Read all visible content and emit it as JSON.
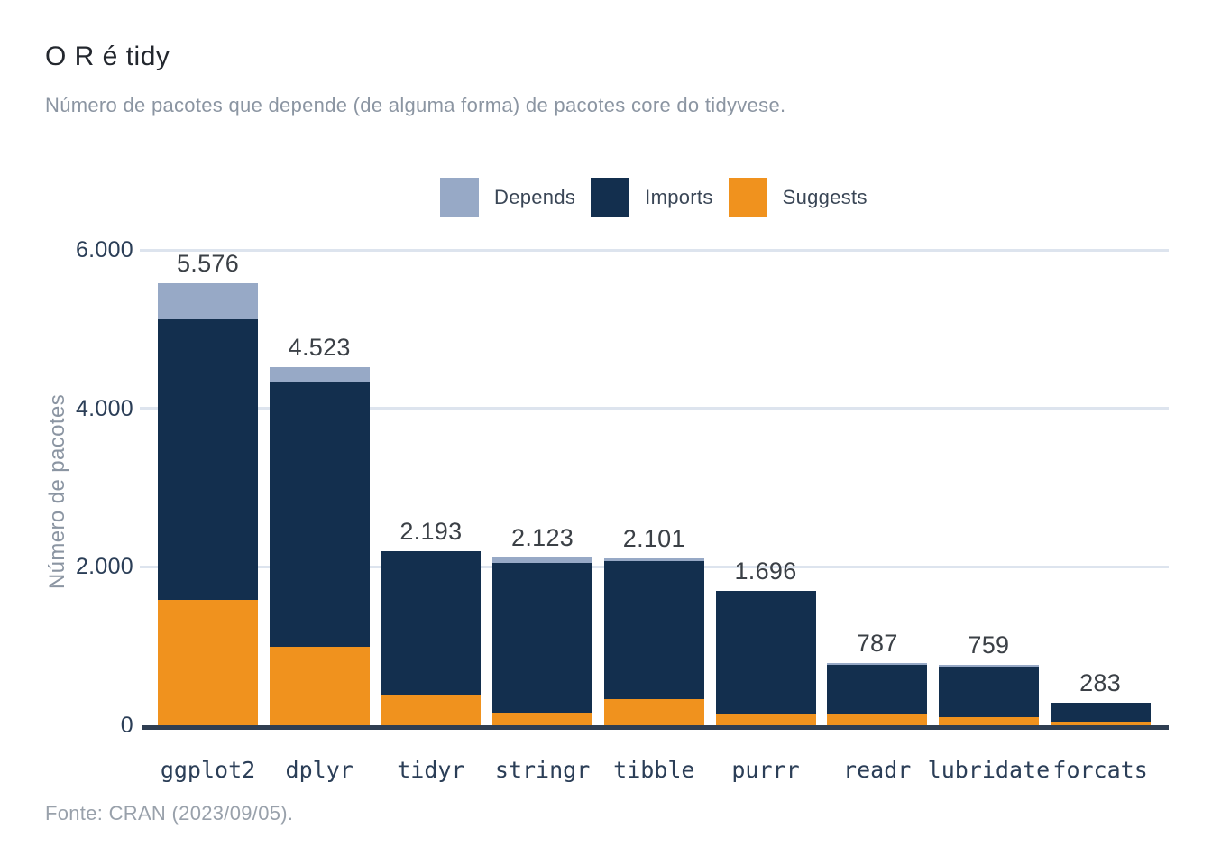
{
  "title": "O R é tidy",
  "subtitle": "Número de pacotes que depende (de alguma forma) de pacotes core do tidyvese.",
  "caption": "Fonte: CRAN (2023/09/05).",
  "legend": {
    "items": [
      {
        "label": "Depends",
        "color_key": "depends"
      },
      {
        "label": "Imports",
        "color_key": "imports"
      },
      {
        "label": "Suggests",
        "color_key": "suggests"
      }
    ]
  },
  "colors": {
    "depends": "#97a9c6",
    "imports": "#132f4e",
    "suggests": "#f0921e",
    "grid": "#dde4ee",
    "axis_line": "#2f3e52",
    "title_text": "#23272e",
    "subtitle_text": "#8b95a2",
    "caption_text": "#99a1ab",
    "tick_label": "#2b3e57",
    "value_label": "#3b4046",
    "legend_label": "#3a4656",
    "axis_title_text": "#8b95a2",
    "background": "#ffffff"
  },
  "chart_data": {
    "type": "bar",
    "stacked": true,
    "title": "O R é tidy",
    "subtitle": "Número de pacotes que depende (de alguma forma) de pacotes core do tidyvese.",
    "source": "Fonte: CRAN (2023/09/05).",
    "categories": [
      "ggplot2",
      "dplyr",
      "tidyr",
      "stringr",
      "tibble",
      "purrr",
      "readr",
      "lubridate",
      "forcats"
    ],
    "series": [
      {
        "name": "Depends",
        "values": [
          455,
          195,
          0,
          70,
          25,
          0,
          20,
          20,
          0
        ]
      },
      {
        "name": "Imports",
        "values": [
          3541,
          3338,
          1803,
          1893,
          1746,
          1556,
          617,
          639,
          233
        ]
      },
      {
        "name": "Suggests",
        "values": [
          1580,
          990,
          390,
          160,
          330,
          140,
          150,
          100,
          50
        ]
      }
    ],
    "stack_order_bottom_to_top": [
      "Suggests",
      "Imports",
      "Depends"
    ],
    "totals": [
      5576,
      4523,
      2193,
      2123,
      2101,
      1696,
      787,
      759,
      283
    ],
    "total_labels": [
      "5.576",
      "4.523",
      "2.193",
      "2.123",
      "2.101",
      "1.696",
      "787",
      "759",
      "283"
    ],
    "xlabel": "",
    "ylabel": "Número de pacotes",
    "ylim": [
      0,
      6000
    ],
    "yticks": {
      "values": [
        0,
        2000,
        4000,
        6000
      ],
      "labels": [
        "0",
        "2.000",
        "4.000",
        "6.000"
      ]
    },
    "grid": "horizontal",
    "legend_position": "top",
    "note": "segment values estimated from pixel heights; totals are exact data labels"
  }
}
